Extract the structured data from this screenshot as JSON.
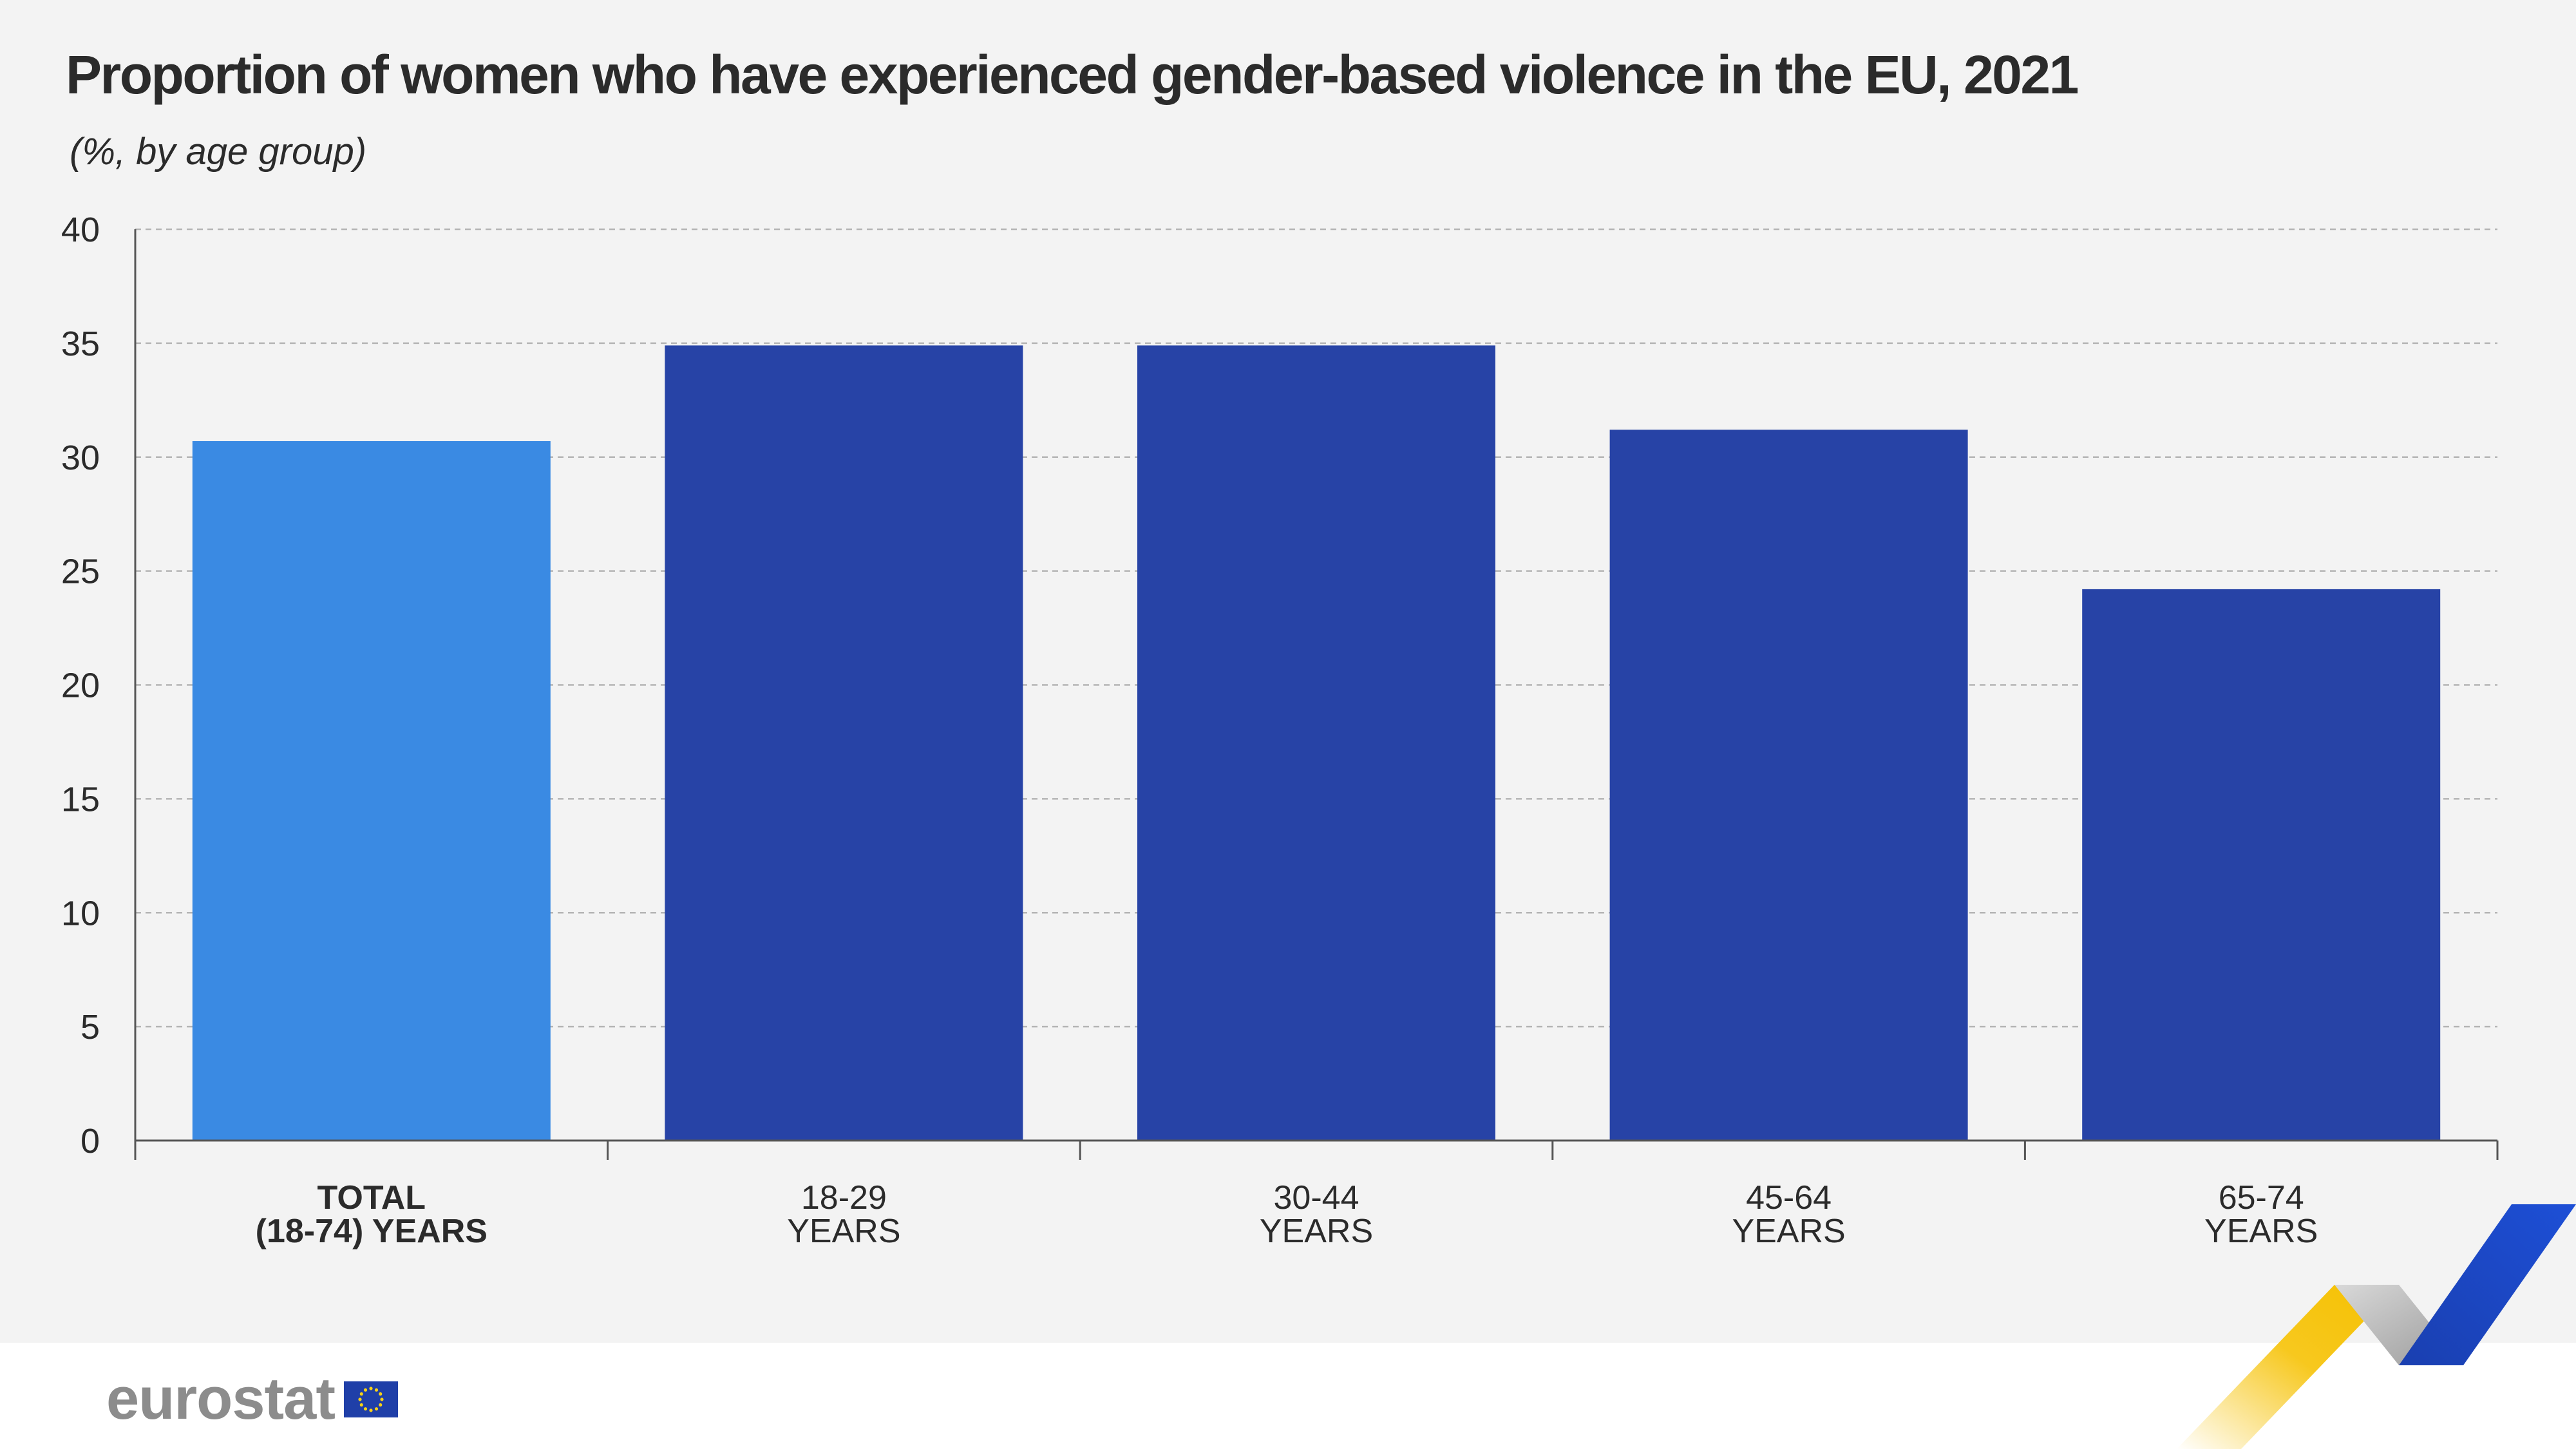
{
  "chart_data": {
    "type": "bar",
    "title": "Proportion of women who have experienced gender-based violence in the EU, 2021",
    "subtitle": "(%, by age group)",
    "categories": [
      [
        "TOTAL",
        "(18-74) YEARS"
      ],
      [
        "18-29",
        "YEARS"
      ],
      [
        "30-44",
        "YEARS"
      ],
      [
        "45-64",
        "YEARS"
      ],
      [
        "65-74",
        "YEARS"
      ]
    ],
    "values": [
      30.7,
      34.9,
      34.9,
      31.2,
      24.2
    ],
    "bar_colors": [
      "#3a8ae3",
      "#2743a6",
      "#2743a6",
      "#2743a6",
      "#2743a6"
    ],
    "highlight_first_category": true,
    "ylim": [
      0,
      40
    ],
    "yticks": [
      0,
      5,
      10,
      15,
      20,
      25,
      30,
      35,
      40
    ],
    "grid": true,
    "xlabel": "",
    "ylabel": ""
  },
  "footer": {
    "logo_text": "eurostat",
    "flag_icon": "eu-flag-icon"
  },
  "colors": {
    "background": "#f3f3f3",
    "accent_yellow": "#f7c81e",
    "accent_blue": "#1a46c8",
    "accent_grey": "#a8a8a8"
  }
}
